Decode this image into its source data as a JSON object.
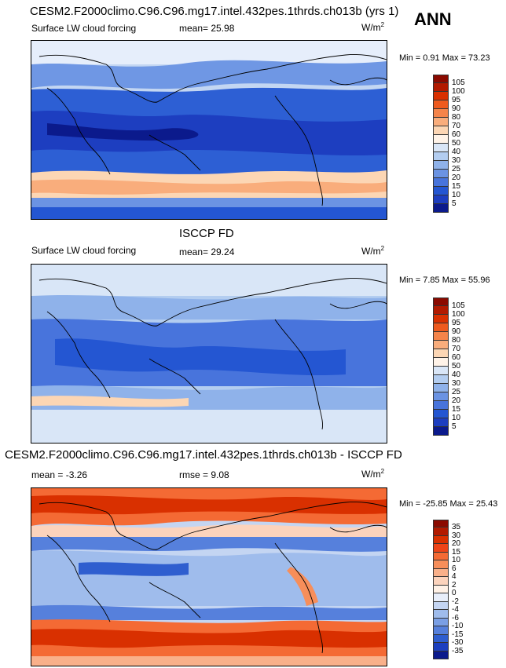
{
  "season": "ANN",
  "panels": [
    {
      "title": "CESM2.F2000climo.C96.C96.mg17.intel.432pes.1thrds.ch013b (yrs 1)",
      "variable": "Surface LW cloud forcing",
      "stat_label": "mean=",
      "stat_value": "25.98",
      "units": "W/m",
      "units_exp": "2",
      "minmax": "Min =  0.91 Max = 73.23"
    },
    {
      "title": "ISCCP FD",
      "variable": "Surface LW cloud forcing",
      "stat_label": "mean=",
      "stat_value": "29.24",
      "units": "W/m",
      "units_exp": "2",
      "minmax": "Min =  7.85 Max = 55.96"
    },
    {
      "title": "CESM2.F2000climo.C96.C96.mg17.intel.432pes.1thrds.ch013b - ISCCP FD",
      "mean_label": "mean =",
      "mean_value": "-3.26",
      "rmse_label": "rmse =",
      "rmse_value": "9.08",
      "units": "W/m",
      "units_exp": "2",
      "minmax": "Min = -25.85 Max = 25.43"
    }
  ],
  "chart_data": [
    {
      "type": "heatmap",
      "title": "CESM2.F2000climo.C96.C96.mg17.intel.432pes.1thrds.ch013b (yrs 1)",
      "field": "Surface LW cloud forcing",
      "units": "W/m2",
      "mean": 25.98,
      "min": 0.91,
      "max": 73.23,
      "colorbar_levels": [
        105,
        100,
        95,
        90,
        80,
        70,
        60,
        50,
        40,
        30,
        25,
        20,
        15,
        10,
        5
      ],
      "colorbar_colors": [
        "#8b0a00",
        "#b21a00",
        "#d93000",
        "#ee5a1e",
        "#f5844a",
        "#f9ad7c",
        "#fcd6b4",
        "#fff3e8",
        "#d9e6f7",
        "#b3cdf0",
        "#8fb2ea",
        "#6b93e3",
        "#4874dc",
        "#2456d2",
        "#1d3ec0",
        "#0b1a8c"
      ],
      "color_scale": "contoured"
    },
    {
      "type": "heatmap",
      "title": "ISCCP FD",
      "field": "Surface LW cloud forcing",
      "units": "W/m2",
      "mean": 29.24,
      "min": 7.85,
      "max": 55.96,
      "colorbar_levels": [
        105,
        100,
        95,
        90,
        80,
        70,
        60,
        50,
        40,
        30,
        25,
        20,
        15,
        10,
        5
      ],
      "colorbar_colors": [
        "#8b0a00",
        "#b21a00",
        "#d93000",
        "#ee5a1e",
        "#f5844a",
        "#f9ad7c",
        "#fcd6b4",
        "#fff3e8",
        "#d9e6f7",
        "#b3cdf0",
        "#8fb2ea",
        "#6b93e3",
        "#4874dc",
        "#2456d2",
        "#1d3ec0",
        "#0b1a8c"
      ],
      "color_scale": "contoured"
    },
    {
      "type": "heatmap",
      "title": "CESM2.F2000climo.C96.C96.mg17.intel.432pes.1thrds.ch013b - ISCCP FD",
      "field": "difference",
      "units": "W/m2",
      "mean": -3.26,
      "rmse": 9.08,
      "min": -25.85,
      "max": 25.43,
      "colorbar_levels": [
        35,
        30,
        20,
        15,
        10,
        6,
        4,
        2,
        0,
        -2,
        -4,
        -6,
        -10,
        -15,
        -30,
        -35
      ],
      "colorbar_colors": [
        "#8b0a00",
        "#b21a00",
        "#d93000",
        "#ee4418",
        "#f46a34",
        "#f78e5a",
        "#f9b08a",
        "#fcd3bc",
        "#fff1e6",
        "#e8eefa",
        "#c4d5f2",
        "#9fbcec",
        "#7a9fe5",
        "#5680dc",
        "#2f5ecf",
        "#1c3fbf",
        "#0b1a8c"
      ],
      "color_scale": "contoured"
    }
  ]
}
